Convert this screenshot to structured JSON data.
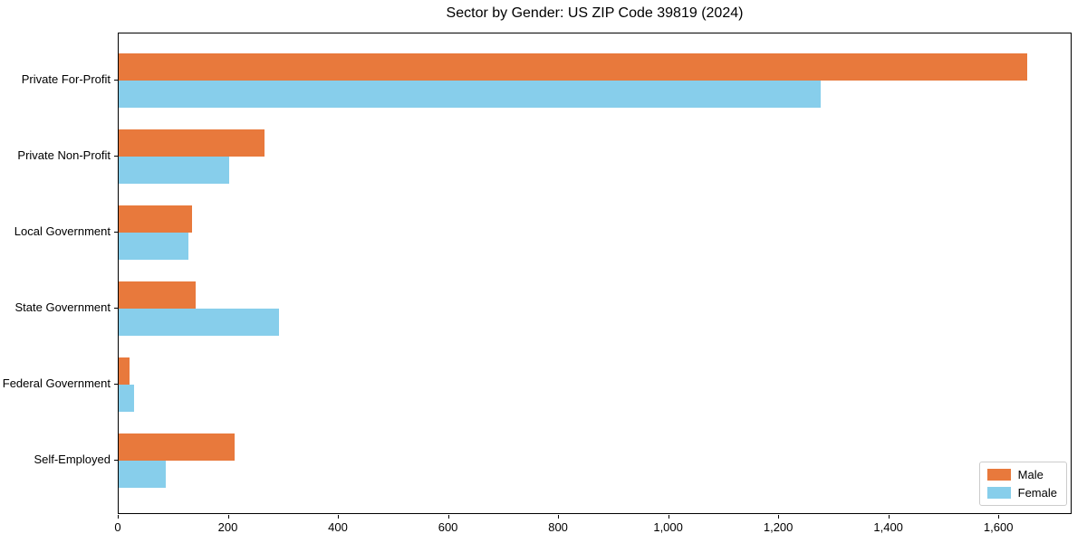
{
  "chart_data": {
    "type": "bar",
    "orientation": "horizontal",
    "title": "Sector by Gender: US ZIP Code 39819 (2024)",
    "categories": [
      "Private For-Profit",
      "Private Non-Profit",
      "Local Government",
      "State Government",
      "Federal Government",
      "Self-Employed"
    ],
    "series": [
      {
        "name": "Male",
        "color": "#e8793c",
        "values": [
          1650,
          265,
          134,
          140,
          19,
          211
        ]
      },
      {
        "name": "Female",
        "color": "#87ceeb",
        "values": [
          1275,
          200,
          127,
          292,
          28,
          85
        ]
      }
    ],
    "xlabel": "",
    "ylabel": "",
    "xlim": [
      0,
      1733
    ],
    "xticks": [
      0,
      200,
      400,
      600,
      800,
      1000,
      1200,
      1400,
      1600
    ],
    "xtick_labels": [
      "0",
      "200",
      "400",
      "600",
      "800",
      "1,000",
      "1,200",
      "1,400",
      "1,600"
    ],
    "grid": false,
    "legend_position": "lower right",
    "frame_color": "#000000",
    "background_color": "#ffffff"
  }
}
